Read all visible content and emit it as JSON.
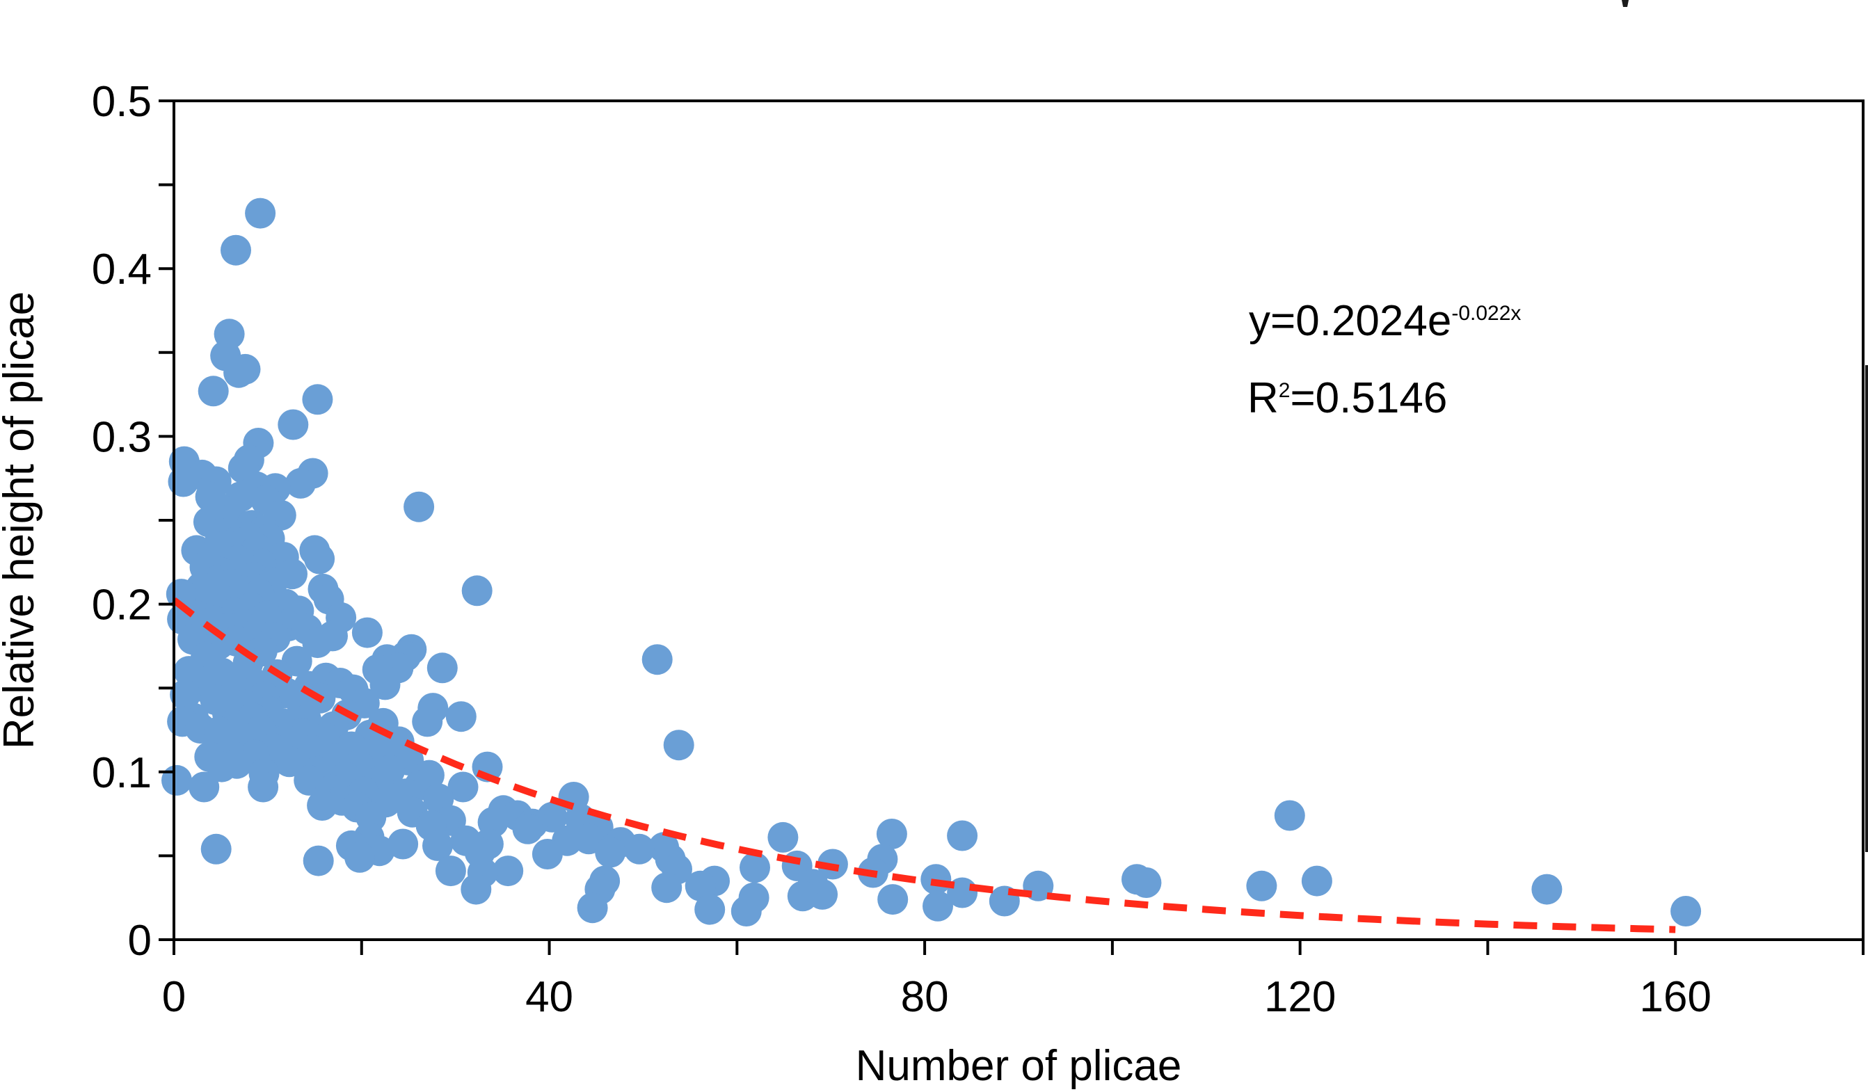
{
  "chart_data": {
    "type": "scatter",
    "title": "",
    "xlabel": "Number of plicae",
    "ylabel": "Relative height of plicae",
    "xlim": [
      0,
      180
    ],
    "ylim": [
      0,
      0.5
    ],
    "x_ticks": [
      0,
      40,
      80,
      120,
      160
    ],
    "x_tick_labels": [
      "0",
      "40",
      "80",
      "120",
      "160"
    ],
    "y_ticks": [
      0,
      0.1,
      0.2,
      0.3,
      0.4,
      0.5
    ],
    "y_tick_labels": [
      "0",
      "0.1",
      "0.2",
      "0.3",
      "0.4",
      "0.5"
    ],
    "marker_color": "#6a9fd6",
    "fit_color": "#ff2a1a",
    "fit": {
      "a": 0.2024,
      "b": -0.022,
      "x_range": [
        0,
        160
      ],
      "equation_prefix": "y=0.2024e",
      "equation_exponent": "-0.022x",
      "r2_prefix": "R",
      "r2_exponent": "2",
      "r2_suffix": "=0.5146"
    },
    "series": [
      {
        "name": "observations",
        "points": [
          [
            9.2,
            0.433
          ],
          [
            6.6,
            0.411
          ],
          [
            5.9,
            0.361
          ],
          [
            5.5,
            0.348
          ],
          [
            7.6,
            0.34
          ],
          [
            6.9,
            0.338
          ],
          [
            4.2,
            0.327
          ],
          [
            15.3,
            0.322
          ],
          [
            12.7,
            0.307
          ],
          [
            9.0,
            0.296
          ],
          [
            8.0,
            0.286
          ],
          [
            1.1,
            0.285
          ],
          [
            7.4,
            0.281
          ],
          [
            14.8,
            0.278
          ],
          [
            3.0,
            0.277
          ],
          [
            4.5,
            0.273
          ],
          [
            1.0,
            0.273
          ],
          [
            13.5,
            0.272
          ],
          [
            8.8,
            0.27
          ],
          [
            10.8,
            0.269
          ],
          [
            3.9,
            0.264
          ],
          [
            7.1,
            0.264
          ],
          [
            9.8,
            0.262
          ],
          [
            26.1,
            0.258
          ],
          [
            5.2,
            0.256
          ],
          [
            11.4,
            0.253
          ],
          [
            6.2,
            0.251
          ],
          [
            3.7,
            0.249
          ],
          [
            8.3,
            0.247
          ],
          [
            9.6,
            0.244
          ],
          [
            4.9,
            0.242
          ],
          [
            7.8,
            0.24
          ],
          [
            10.2,
            0.239
          ],
          [
            6.5,
            0.237
          ],
          [
            5.6,
            0.235
          ],
          [
            8.9,
            0.233
          ],
          [
            2.4,
            0.232
          ],
          [
            15.0,
            0.232
          ],
          [
            4.1,
            0.229
          ],
          [
            11.7,
            0.228
          ],
          [
            15.5,
            0.227
          ],
          [
            6.8,
            0.226
          ],
          [
            9.3,
            0.224
          ],
          [
            3.3,
            0.222
          ],
          [
            7.7,
            0.221
          ],
          [
            5.0,
            0.219
          ],
          [
            12.6,
            0.218
          ],
          [
            8.5,
            0.216
          ],
          [
            4.6,
            0.214
          ],
          [
            10.5,
            0.213
          ],
          [
            6.1,
            0.212
          ],
          [
            2.9,
            0.21
          ],
          [
            15.9,
            0.209
          ],
          [
            7.3,
            0.208
          ],
          [
            32.3,
            0.208
          ],
          [
            9.1,
            0.206
          ],
          [
            0.8,
            0.206
          ],
          [
            16.5,
            0.203
          ],
          [
            5.3,
            0.202
          ],
          [
            11.9,
            0.2
          ],
          [
            3.8,
            0.199
          ],
          [
            8.2,
            0.198
          ],
          [
            13.3,
            0.196
          ],
          [
            6.4,
            0.195
          ],
          [
            2.5,
            0.193
          ],
          [
            9.9,
            0.193
          ],
          [
            17.8,
            0.192
          ],
          [
            0.9,
            0.191
          ],
          [
            4.3,
            0.19
          ],
          [
            7.0,
            0.188
          ],
          [
            12.2,
            0.187
          ],
          [
            5.8,
            0.186
          ],
          [
            14.2,
            0.185
          ],
          [
            3.1,
            0.184
          ],
          [
            20.6,
            0.183
          ],
          [
            8.7,
            0.182
          ],
          [
            16.9,
            0.181
          ],
          [
            10.8,
            0.18
          ],
          [
            2.0,
            0.179
          ],
          [
            6.6,
            0.178
          ],
          [
            15.3,
            0.177
          ],
          [
            4.8,
            0.176
          ],
          [
            25.3,
            0.173
          ],
          [
            9.4,
            0.172
          ],
          [
            24.7,
            0.169
          ],
          [
            3.4,
            0.168
          ],
          [
            22.7,
            0.167
          ],
          [
            51.5,
            0.167
          ],
          [
            13.1,
            0.166
          ],
          [
            7.9,
            0.165
          ],
          [
            28.6,
            0.162
          ],
          [
            23.9,
            0.162
          ],
          [
            21.7,
            0.161
          ],
          [
            1.6,
            0.16
          ],
          [
            5.1,
            0.159
          ],
          [
            11.0,
            0.158
          ],
          [
            16.2,
            0.156
          ],
          [
            8.1,
            0.155
          ],
          [
            2.7,
            0.154
          ],
          [
            17.7,
            0.153
          ],
          [
            22.5,
            0.152
          ],
          [
            14.4,
            0.151
          ],
          [
            3.5,
            0.15
          ],
          [
            19.1,
            0.149
          ],
          [
            6.9,
            0.148
          ],
          [
            12.0,
            0.147
          ],
          [
            1.2,
            0.146
          ],
          [
            9.6,
            0.145
          ],
          [
            15.6,
            0.144
          ],
          [
            4.4,
            0.143
          ],
          [
            20.3,
            0.141
          ],
          [
            7.5,
            0.14
          ],
          [
            27.6,
            0.138
          ],
          [
            13.7,
            0.137
          ],
          [
            10.1,
            0.136
          ],
          [
            5.7,
            0.135
          ],
          [
            18.4,
            0.134
          ],
          [
            30.6,
            0.133
          ],
          [
            2.1,
            0.132
          ],
          [
            8.4,
            0.132
          ],
          [
            14.1,
            0.131
          ],
          [
            27.0,
            0.13
          ],
          [
            0.9,
            0.13
          ],
          [
            11.5,
            0.129
          ],
          [
            22.3,
            0.129
          ],
          [
            6.3,
            0.128
          ],
          [
            17.0,
            0.127
          ],
          [
            2.8,
            0.126
          ],
          [
            9.3,
            0.125
          ],
          [
            4.8,
            0.124
          ],
          [
            13.6,
            0.123
          ],
          [
            20.9,
            0.122
          ],
          [
            7.1,
            0.121
          ],
          [
            16.2,
            0.12
          ],
          [
            11.9,
            0.119
          ],
          [
            24.0,
            0.118
          ],
          [
            53.8,
            0.116
          ],
          [
            5.4,
            0.116
          ],
          [
            18.9,
            0.115
          ],
          [
            10.5,
            0.114
          ],
          [
            14.7,
            0.113
          ],
          [
            21.6,
            0.111
          ],
          [
            8.6,
            0.11
          ],
          [
            3.8,
            0.109
          ],
          [
            17.1,
            0.108
          ],
          [
            25.0,
            0.107
          ],
          [
            12.3,
            0.106
          ],
          [
            6.7,
            0.105
          ],
          [
            19.7,
            0.104
          ],
          [
            33.4,
            0.103
          ],
          [
            5.1,
            0.103
          ],
          [
            23.0,
            0.101
          ],
          [
            15.2,
            0.1
          ],
          [
            9.6,
            0.099
          ],
          [
            27.2,
            0.098
          ],
          [
            18.3,
            0.097
          ],
          [
            0.3,
            0.095
          ],
          [
            14.4,
            0.095
          ],
          [
            21.8,
            0.094
          ],
          [
            26.2,
            0.092
          ],
          [
            3.2,
            0.091
          ],
          [
            9.5,
            0.091
          ],
          [
            30.8,
            0.091
          ],
          [
            16.7,
            0.089
          ],
          [
            20.2,
            0.088
          ],
          [
            24.7,
            0.087
          ],
          [
            42.6,
            0.085
          ],
          [
            28.2,
            0.084
          ],
          [
            17.9,
            0.083
          ],
          [
            22.6,
            0.082
          ],
          [
            15.8,
            0.08
          ],
          [
            19.5,
            0.079
          ],
          [
            35.1,
            0.077
          ],
          [
            25.4,
            0.076
          ],
          [
            36.6,
            0.074
          ],
          [
            21.0,
            0.073
          ],
          [
            40.3,
            0.073
          ],
          [
            43.3,
            0.072
          ],
          [
            29.5,
            0.071
          ],
          [
            34.0,
            0.07
          ],
          [
            38.2,
            0.069
          ],
          [
            27.4,
            0.068
          ],
          [
            45.2,
            0.067
          ],
          [
            37.7,
            0.066
          ],
          [
            76.5,
            0.063
          ],
          [
            84.0,
            0.062
          ],
          [
            64.9,
            0.061
          ],
          [
            20.8,
            0.061
          ],
          [
            44.2,
            0.06
          ],
          [
            31.1,
            0.059
          ],
          [
            41.9,
            0.059
          ],
          [
            47.6,
            0.058
          ],
          [
            33.5,
            0.057
          ],
          [
            24.4,
            0.057
          ],
          [
            18.9,
            0.056
          ],
          [
            28.1,
            0.056
          ],
          [
            52.2,
            0.055
          ],
          [
            49.6,
            0.054
          ],
          [
            4.5,
            0.054
          ],
          [
            21.9,
            0.053
          ],
          [
            32.6,
            0.052
          ],
          [
            46.5,
            0.052
          ],
          [
            39.8,
            0.051
          ],
          [
            19.8,
            0.049
          ],
          [
            52.9,
            0.048
          ],
          [
            75.5,
            0.048
          ],
          [
            15.4,
            0.047
          ],
          [
            70.2,
            0.045
          ],
          [
            66.4,
            0.044
          ],
          [
            61.9,
            0.043
          ],
          [
            53.6,
            0.042
          ],
          [
            29.5,
            0.041
          ],
          [
            35.6,
            0.041
          ],
          [
            74.5,
            0.04
          ],
          [
            32.9,
            0.04
          ],
          [
            81.2,
            0.036
          ],
          [
            102.6,
            0.036
          ],
          [
            57.6,
            0.035
          ],
          [
            45.9,
            0.035
          ],
          [
            103.6,
            0.034
          ],
          [
            68.1,
            0.033
          ],
          [
            121.8,
            0.035
          ],
          [
            92.1,
            0.032
          ],
          [
            115.9,
            0.032
          ],
          [
            56.1,
            0.032
          ],
          [
            52.5,
            0.031
          ],
          [
            45.4,
            0.03
          ],
          [
            146.3,
            0.03
          ],
          [
            32.2,
            0.03
          ],
          [
            84.0,
            0.028
          ],
          [
            69.1,
            0.027
          ],
          [
            67.0,
            0.026
          ],
          [
            61.8,
            0.025
          ],
          [
            76.6,
            0.024
          ],
          [
            88.5,
            0.023
          ],
          [
            81.4,
            0.02
          ],
          [
            44.6,
            0.019
          ],
          [
            57.1,
            0.018
          ],
          [
            61.0,
            0.017
          ],
          [
            161.1,
            0.017
          ],
          [
            118.9,
            0.074
          ]
        ]
      }
    ]
  }
}
